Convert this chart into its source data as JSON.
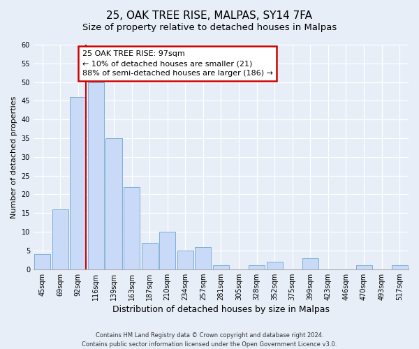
{
  "title": "25, OAK TREE RISE, MALPAS, SY14 7FA",
  "subtitle": "Size of property relative to detached houses in Malpas",
  "xlabel": "Distribution of detached houses by size in Malpas",
  "ylabel": "Number of detached properties",
  "bar_labels": [
    "45sqm",
    "69sqm",
    "92sqm",
    "116sqm",
    "139sqm",
    "163sqm",
    "187sqm",
    "210sqm",
    "234sqm",
    "257sqm",
    "281sqm",
    "305sqm",
    "328sqm",
    "352sqm",
    "375sqm",
    "399sqm",
    "423sqm",
    "446sqm",
    "470sqm",
    "493sqm",
    "517sqm"
  ],
  "bar_values": [
    4,
    16,
    46,
    50,
    35,
    22,
    7,
    10,
    5,
    6,
    1,
    0,
    1,
    2,
    0,
    3,
    0,
    0,
    1,
    0,
    1
  ],
  "bar_color": "#c9daf8",
  "bar_edge_color": "#7bafd4",
  "vline_color": "#cc0000",
  "ylim": [
    0,
    60
  ],
  "yticks": [
    0,
    5,
    10,
    15,
    20,
    25,
    30,
    35,
    40,
    45,
    50,
    55,
    60
  ],
  "annotation_text": "25 OAK TREE RISE: 97sqm\n← 10% of detached houses are smaller (21)\n88% of semi-detached houses are larger (186) →",
  "annotation_box_color": "#ffffff",
  "annotation_box_edge": "#cc0000",
  "footer_line1": "Contains HM Land Registry data © Crown copyright and database right 2024.",
  "footer_line2": "Contains public sector information licensed under the Open Government Licence v3.0.",
  "bg_color": "#e8eef8",
  "grid_color": "#ffffff",
  "title_fontsize": 11,
  "subtitle_fontsize": 9.5,
  "ylabel_fontsize": 8,
  "xlabel_fontsize": 9,
  "tick_fontsize": 7,
  "annot_fontsize": 8
}
